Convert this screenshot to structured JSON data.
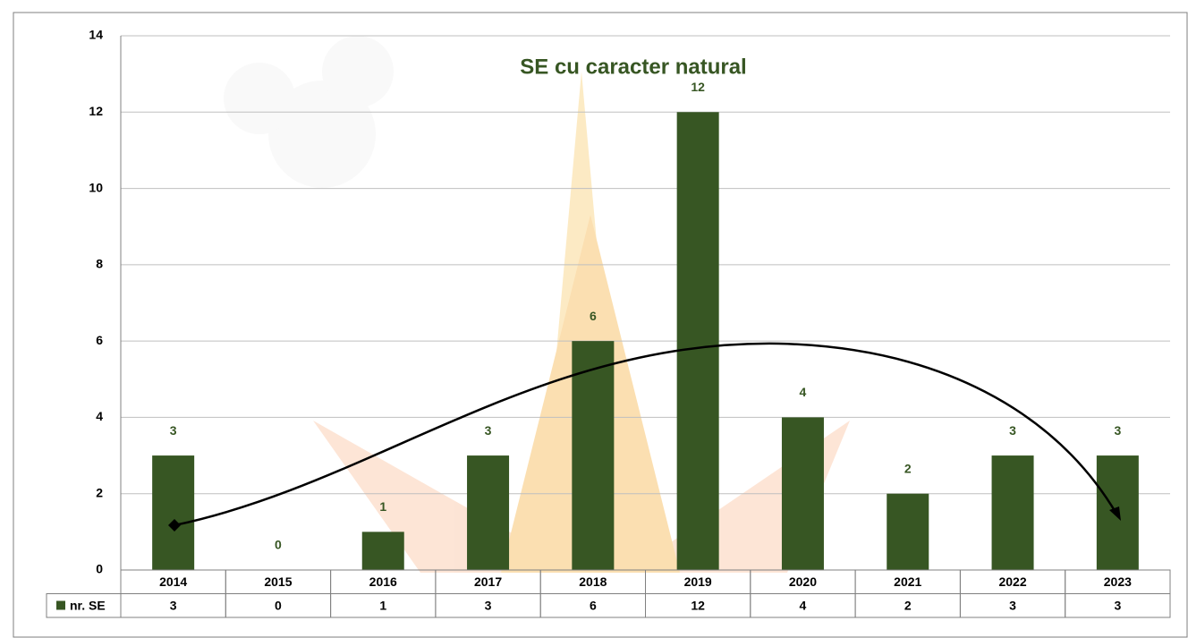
{
  "chart_data": {
    "type": "bar",
    "title": "SE cu caracter natural",
    "categories": [
      "2014",
      "2015",
      "2016",
      "2017",
      "2018",
      "2019",
      "2020",
      "2021",
      "2022",
      "2023"
    ],
    "series": [
      {
        "name": "nr. SE",
        "color": "#375623",
        "values": [
          3,
          0,
          1,
          3,
          6,
          12,
          4,
          2,
          3,
          3
        ]
      }
    ],
    "ylim": [
      0,
      14
    ],
    "yticks": [
      0,
      2,
      4,
      6,
      8,
      10,
      12,
      14
    ],
    "grid": true,
    "data_table": true
  }
}
